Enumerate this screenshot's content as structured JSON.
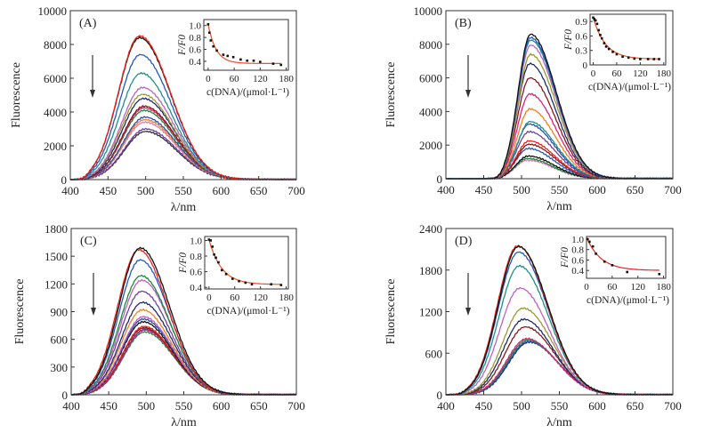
{
  "chart_data": [
    {
      "type": "line",
      "panel_label": "(A)",
      "xlabel": "λ/nm",
      "ylabel": "Fluorescence",
      "xlim": [
        400,
        700
      ],
      "ylim": [
        0,
        10000
      ],
      "xticks": [
        400,
        450,
        500,
        550,
        600,
        650,
        700
      ],
      "yticks": [
        0,
        2000,
        4000,
        6000,
        8000,
        10000
      ],
      "arrow": "down",
      "series_shape": {
        "onset": 405,
        "width_left": 38,
        "width_right": 55
      },
      "series": [
        {
          "color": "#e8261c",
          "peak_x": 492,
          "peak_y": 8500
        },
        {
          "color": "#111111",
          "peak_x": 492,
          "peak_y": 8400
        },
        {
          "color": "#2458c0",
          "peak_x": 493,
          "peak_y": 7400
        },
        {
          "color": "#1f8f8a",
          "peak_x": 494,
          "peak_y": 6300
        },
        {
          "color": "#c060c0",
          "peak_x": 496,
          "peak_y": 5450
        },
        {
          "color": "#9a9a30",
          "peak_x": 496,
          "peak_y": 5050
        },
        {
          "color": "#1d2a70",
          "peak_x": 497,
          "peak_y": 4800
        },
        {
          "color": "#8a1a1a",
          "peak_x": 498,
          "peak_y": 4350
        },
        {
          "color": "#e0207a",
          "peak_x": 498,
          "peak_y": 4250
        },
        {
          "color": "#1a8a3a",
          "peak_x": 498,
          "peak_y": 4100
        },
        {
          "color": "#2a50b0",
          "peak_x": 499,
          "peak_y": 3700
        },
        {
          "color": "#f08020",
          "peak_x": 499,
          "peak_y": 3550
        },
        {
          "color": "#e07ab8",
          "peak_x": 499,
          "peak_y": 3400
        },
        {
          "color": "#7040a0",
          "peak_x": 500,
          "peak_y": 3000
        },
        {
          "color": "#333333",
          "peak_x": 500,
          "peak_y": 2850
        }
      ],
      "inset": {
        "xlabel": "c(DNA)/(μmol·L⁻¹)",
        "ylabel": "F/F0",
        "xlim": [
          -10,
          185
        ],
        "ylim": [
          0.25,
          1.1
        ],
        "xticks": [
          0,
          60,
          120,
          180
        ],
        "yticks": [
          0.4,
          0.6,
          0.8,
          1.0
        ],
        "ytick_labels": [
          "0.4",
          "0.6",
          "0.8",
          "1.0"
        ],
        "points": [
          [
            0,
            1.02
          ],
          [
            3,
            0.88
          ],
          [
            6,
            0.75
          ],
          [
            12,
            0.65
          ],
          [
            20,
            0.58
          ],
          [
            35,
            0.51
          ],
          [
            45,
            0.49
          ],
          [
            58,
            0.47
          ],
          [
            75,
            0.43
          ],
          [
            90,
            0.41
          ],
          [
            105,
            0.41
          ],
          [
            120,
            0.39
          ],
          [
            150,
            0.36
          ],
          [
            168,
            0.34
          ]
        ],
        "fit_color": "#f05020"
      }
    },
    {
      "type": "line",
      "panel_label": "(B)",
      "xlabel": "λ/nm",
      "ylabel": "Fluorescence",
      "xlim": [
        400,
        700
      ],
      "ylim": [
        0,
        10000
      ],
      "xticks": [
        400,
        450,
        500,
        550,
        600,
        650,
        700
      ],
      "yticks": [
        0,
        2000,
        4000,
        6000,
        8000,
        10000
      ],
      "arrow": "down",
      "series_shape": {
        "onset": 455,
        "width_left": 22,
        "width_right": 45
      },
      "series": [
        {
          "color": "#111111",
          "peak_x": 512,
          "peak_y": 8600
        },
        {
          "color": "#2458c0",
          "peak_x": 512,
          "peak_y": 8400
        },
        {
          "color": "#1f8f8a",
          "peak_x": 512,
          "peak_y": 8250
        },
        {
          "color": "#c060c0",
          "peak_x": 512,
          "peak_y": 7950
        },
        {
          "color": "#9a9a30",
          "peak_x": 512,
          "peak_y": 7400
        },
        {
          "color": "#1d2a70",
          "peak_x": 511,
          "peak_y": 6850
        },
        {
          "color": "#8a1a1a",
          "peak_x": 511,
          "peak_y": 6000
        },
        {
          "color": "#e0207a",
          "peak_x": 511,
          "peak_y": 5050
        },
        {
          "color": "#f08020",
          "peak_x": 511,
          "peak_y": 4150
        },
        {
          "color": "#1f8f8a",
          "peak_x": 511,
          "peak_y": 3400
        },
        {
          "color": "#2a50b0",
          "peak_x": 510,
          "peak_y": 3250
        },
        {
          "color": "#7040a0",
          "peak_x": 510,
          "peak_y": 2800
        },
        {
          "color": "#e8261c",
          "peak_x": 510,
          "peak_y": 2250
        },
        {
          "color": "#8a1a1a",
          "peak_x": 510,
          "peak_y": 2050
        },
        {
          "color": "#2458c0",
          "peak_x": 509,
          "peak_y": 1800
        },
        {
          "color": "#111111",
          "peak_x": 509,
          "peak_y": 1350
        },
        {
          "color": "#1a8a3a",
          "peak_x": 508,
          "peak_y": 1200
        },
        {
          "color": "#e07ab8",
          "peak_x": 508,
          "peak_y": 1100
        }
      ],
      "inset": {
        "xlabel": "c(DNA)/(μmol·L⁻¹)",
        "ylabel": "F/F0",
        "xlim": [
          -8,
          185
        ],
        "ylim": [
          0,
          1.05
        ],
        "xticks": [
          0,
          60,
          120,
          180
        ],
        "yticks": [
          0,
          0.3,
          0.6,
          0.9
        ],
        "ytick_labels": [
          "0",
          "0.3",
          "0.6",
          "0.9"
        ],
        "points": [
          [
            0,
            0.98
          ],
          [
            3,
            0.95
          ],
          [
            6,
            0.92
          ],
          [
            10,
            0.85
          ],
          [
            14,
            0.72
          ],
          [
            18,
            0.62
          ],
          [
            22,
            0.55
          ],
          [
            28,
            0.45
          ],
          [
            33,
            0.38
          ],
          [
            40,
            0.33
          ],
          [
            50,
            0.27
          ],
          [
            60,
            0.22
          ],
          [
            75,
            0.17
          ],
          [
            90,
            0.15
          ],
          [
            105,
            0.13
          ],
          [
            120,
            0.12
          ],
          [
            140,
            0.12
          ],
          [
            155,
            0.12
          ],
          [
            168,
            0.12
          ]
        ],
        "fit_color": "#f05020"
      }
    },
    {
      "type": "line",
      "panel_label": "(C)",
      "xlabel": "λ/nm",
      "ylabel": "Fluorescence",
      "xlim": [
        400,
        700
      ],
      "ylim": [
        0,
        1800
      ],
      "xticks": [
        400,
        450,
        500,
        550,
        600,
        650,
        700
      ],
      "yticks": [
        0,
        300,
        600,
        900,
        1200,
        1500,
        1800
      ],
      "arrow": "down",
      "series_shape": {
        "onset": 402,
        "width_left": 38,
        "width_right": 52
      },
      "series": [
        {
          "color": "#111111",
          "peak_x": 492,
          "peak_y": 1590
        },
        {
          "color": "#e8261c",
          "peak_x": 490,
          "peak_y": 1570
        },
        {
          "color": "#2458c0",
          "peak_x": 492,
          "peak_y": 1460
        },
        {
          "color": "#1a8a3a",
          "peak_x": 493,
          "peak_y": 1290
        },
        {
          "color": "#c060c0",
          "peak_x": 494,
          "peak_y": 1240
        },
        {
          "color": "#7040a0",
          "peak_x": 494,
          "peak_y": 1120
        },
        {
          "color": "#1d2a70",
          "peak_x": 495,
          "peak_y": 1000
        },
        {
          "color": "#f08020",
          "peak_x": 495,
          "peak_y": 920
        },
        {
          "color": "#c060c0",
          "peak_x": 496,
          "peak_y": 845
        },
        {
          "color": "#2a50b0",
          "peak_x": 496,
          "peak_y": 820
        },
        {
          "color": "#111111",
          "peak_x": 496,
          "peak_y": 790
        },
        {
          "color": "#e8261c",
          "peak_x": 497,
          "peak_y": 740
        },
        {
          "color": "#8a1a1a",
          "peak_x": 497,
          "peak_y": 725
        },
        {
          "color": "#7040a0",
          "peak_x": 498,
          "peak_y": 710
        },
        {
          "color": "#e0207a",
          "peak_x": 498,
          "peak_y": 700
        },
        {
          "color": "#1a8a3a",
          "peak_x": 498,
          "peak_y": 680
        }
      ],
      "inset": {
        "xlabel": "c(DNA)/(μmol·L⁻¹)",
        "ylabel": "F/F0",
        "xlim": [
          -10,
          185
        ],
        "ylim": [
          0.38,
          1.05
        ],
        "xticks": [
          0,
          60,
          120,
          180
        ],
        "yticks": [
          0.4,
          0.6,
          0.8,
          1.0
        ],
        "ytick_labels": [
          "0.4",
          "0.6",
          "0.8",
          "1.0"
        ],
        "points": [
          [
            0,
            1.01
          ],
          [
            4,
            1.0
          ],
          [
            8,
            0.92
          ],
          [
            12,
            0.82
          ],
          [
            16,
            0.78
          ],
          [
            22,
            0.72
          ],
          [
            30,
            0.62
          ],
          [
            40,
            0.57
          ],
          [
            55,
            0.51
          ],
          [
            70,
            0.48
          ],
          [
            85,
            0.46
          ],
          [
            100,
            0.44
          ],
          [
            145,
            0.44
          ],
          [
            168,
            0.43
          ]
        ],
        "fit_color": "#f05020"
      }
    },
    {
      "type": "line",
      "panel_label": "(D)",
      "xlabel": "λ/nm",
      "ylabel": "Fluorescence",
      "xlim": [
        400,
        700
      ],
      "ylim": [
        0,
        2400
      ],
      "xticks": [
        400,
        450,
        500,
        550,
        600,
        650,
        700
      ],
      "yticks": [
        0,
        600,
        1200,
        1800,
        2400
      ],
      "arrow": "down",
      "series_shape": {
        "onset": 405,
        "width_left": 36,
        "width_right": 52
      },
      "series": [
        {
          "color": "#111111",
          "peak_x": 496,
          "peak_y": 2140
        },
        {
          "color": "#e8261c",
          "peak_x": 495,
          "peak_y": 2150
        },
        {
          "color": "#2458c0",
          "peak_x": 496,
          "peak_y": 2060
        },
        {
          "color": "#1f8f8a",
          "peak_x": 497,
          "peak_y": 1860
        },
        {
          "color": "#c060c0",
          "peak_x": 498,
          "peak_y": 1540
        },
        {
          "color": "#9a9a30",
          "peak_x": 502,
          "peak_y": 1250
        },
        {
          "color": "#1d2a70",
          "peak_x": 503,
          "peak_y": 1090
        },
        {
          "color": "#8a1a1a",
          "peak_x": 505,
          "peak_y": 980
        },
        {
          "color": "#e0207a",
          "peak_x": 507,
          "peak_y": 810
        },
        {
          "color": "#1a8a3a",
          "peak_x": 508,
          "peak_y": 790
        },
        {
          "color": "#2a50b0",
          "peak_x": 509,
          "peak_y": 770
        },
        {
          "color": "#1d2a70",
          "peak_x": 510,
          "peak_y": 760
        }
      ],
      "inset": {
        "xlabel": "c(DNA)/(μmol·L⁻¹)",
        "ylabel": "F/F0",
        "xlim": [
          0,
          185
        ],
        "ylim": [
          0.25,
          1.05
        ],
        "xticks": [
          0,
          60,
          120,
          180
        ],
        "yticks": [
          0.4,
          0.6,
          0.8,
          1.0
        ],
        "ytick_labels": [
          "0.4",
          "0.6",
          "0.8",
          "1.0"
        ],
        "points": [
          [
            2,
            1.0
          ],
          [
            7,
            0.95
          ],
          [
            15,
            0.86
          ],
          [
            22,
            0.72
          ],
          [
            42,
            0.57
          ],
          [
            60,
            0.5
          ],
          [
            95,
            0.37
          ],
          [
            170,
            0.33
          ]
        ],
        "fit_color": "#e8261c"
      }
    }
  ]
}
